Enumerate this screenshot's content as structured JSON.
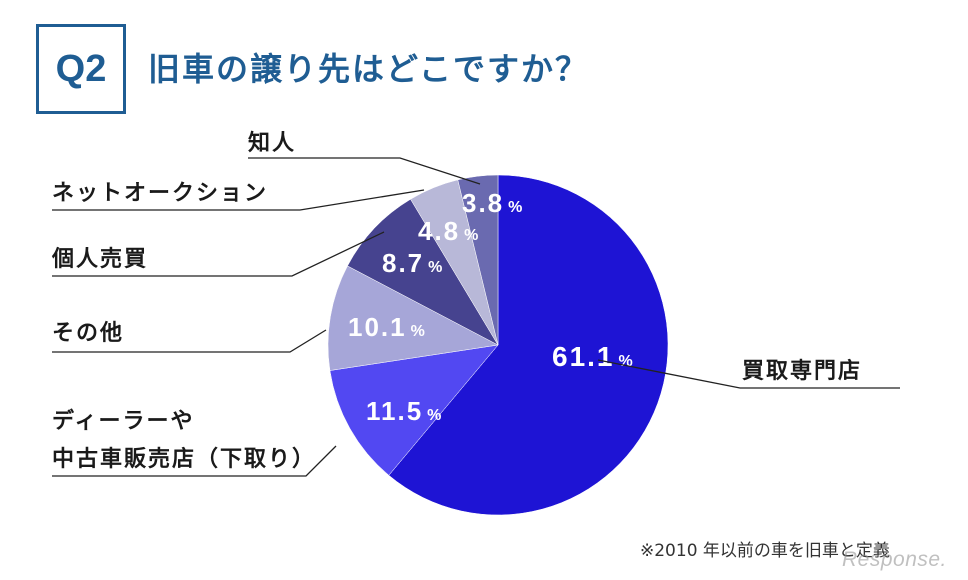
{
  "header": {
    "q_label": "Q2",
    "title": "旧車の譲り先はどこですか？"
  },
  "chart_data": {
    "type": "pie",
    "title": "旧車の譲り先はどこですか？",
    "percent_sign": "%",
    "slices": [
      {
        "label": "買取専門店",
        "value": 61.1,
        "display": "61.1",
        "color": "#1e14d4"
      },
      {
        "label": "ディーラーや\n中古車販売店（下取り）",
        "value": 11.5,
        "display": "11.5",
        "color": "#5248f2"
      },
      {
        "label": "その他",
        "value": 10.1,
        "display": "10.1",
        "color": "#a6a6d8"
      },
      {
        "label": "個人売買",
        "value": 8.7,
        "display": "8.7",
        "color": "#46438f"
      },
      {
        "label": "ネットオークション",
        "value": 4.8,
        "display": "4.8",
        "color": "#b8b8d8"
      },
      {
        "label": "知人",
        "value": 3.8,
        "display": "3.8",
        "color": "#6a6ab0"
      }
    ]
  },
  "footnote": "※2010 年以前の車を旧車と定義",
  "watermark": "Response."
}
